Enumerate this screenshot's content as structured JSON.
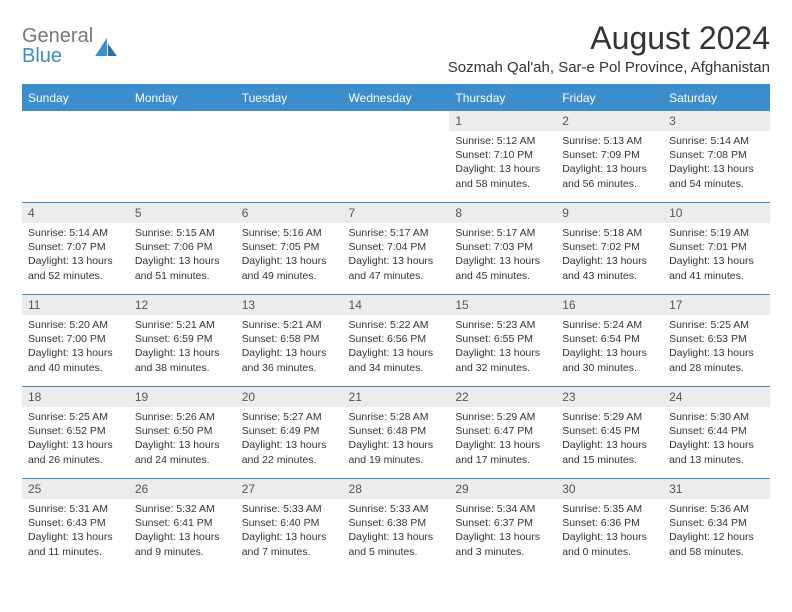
{
  "brand": {
    "line1": "General",
    "line2": "Blue"
  },
  "title": "August 2024",
  "subtitle": "Sozmah Qal'ah, Sar-e Pol Province, Afghanistan",
  "colors": {
    "accent": "#3c8dcc",
    "daynum_bg": "#ececec",
    "text": "#333333"
  },
  "weekdays": [
    "Sunday",
    "Monday",
    "Tuesday",
    "Wednesday",
    "Thursday",
    "Friday",
    "Saturday"
  ],
  "weeks": [
    [
      null,
      null,
      null,
      null,
      {
        "n": "1",
        "sr": "5:12 AM",
        "ss": "7:10 PM",
        "dl": "13 hours and 58 minutes."
      },
      {
        "n": "2",
        "sr": "5:13 AM",
        "ss": "7:09 PM",
        "dl": "13 hours and 56 minutes."
      },
      {
        "n": "3",
        "sr": "5:14 AM",
        "ss": "7:08 PM",
        "dl": "13 hours and 54 minutes."
      }
    ],
    [
      {
        "n": "4",
        "sr": "5:14 AM",
        "ss": "7:07 PM",
        "dl": "13 hours and 52 minutes."
      },
      {
        "n": "5",
        "sr": "5:15 AM",
        "ss": "7:06 PM",
        "dl": "13 hours and 51 minutes."
      },
      {
        "n": "6",
        "sr": "5:16 AM",
        "ss": "7:05 PM",
        "dl": "13 hours and 49 minutes."
      },
      {
        "n": "7",
        "sr": "5:17 AM",
        "ss": "7:04 PM",
        "dl": "13 hours and 47 minutes."
      },
      {
        "n": "8",
        "sr": "5:17 AM",
        "ss": "7:03 PM",
        "dl": "13 hours and 45 minutes."
      },
      {
        "n": "9",
        "sr": "5:18 AM",
        "ss": "7:02 PM",
        "dl": "13 hours and 43 minutes."
      },
      {
        "n": "10",
        "sr": "5:19 AM",
        "ss": "7:01 PM",
        "dl": "13 hours and 41 minutes."
      }
    ],
    [
      {
        "n": "11",
        "sr": "5:20 AM",
        "ss": "7:00 PM",
        "dl": "13 hours and 40 minutes."
      },
      {
        "n": "12",
        "sr": "5:21 AM",
        "ss": "6:59 PM",
        "dl": "13 hours and 38 minutes."
      },
      {
        "n": "13",
        "sr": "5:21 AM",
        "ss": "6:58 PM",
        "dl": "13 hours and 36 minutes."
      },
      {
        "n": "14",
        "sr": "5:22 AM",
        "ss": "6:56 PM",
        "dl": "13 hours and 34 minutes."
      },
      {
        "n": "15",
        "sr": "5:23 AM",
        "ss": "6:55 PM",
        "dl": "13 hours and 32 minutes."
      },
      {
        "n": "16",
        "sr": "5:24 AM",
        "ss": "6:54 PM",
        "dl": "13 hours and 30 minutes."
      },
      {
        "n": "17",
        "sr": "5:25 AM",
        "ss": "6:53 PM",
        "dl": "13 hours and 28 minutes."
      }
    ],
    [
      {
        "n": "18",
        "sr": "5:25 AM",
        "ss": "6:52 PM",
        "dl": "13 hours and 26 minutes."
      },
      {
        "n": "19",
        "sr": "5:26 AM",
        "ss": "6:50 PM",
        "dl": "13 hours and 24 minutes."
      },
      {
        "n": "20",
        "sr": "5:27 AM",
        "ss": "6:49 PM",
        "dl": "13 hours and 22 minutes."
      },
      {
        "n": "21",
        "sr": "5:28 AM",
        "ss": "6:48 PM",
        "dl": "13 hours and 19 minutes."
      },
      {
        "n": "22",
        "sr": "5:29 AM",
        "ss": "6:47 PM",
        "dl": "13 hours and 17 minutes."
      },
      {
        "n": "23",
        "sr": "5:29 AM",
        "ss": "6:45 PM",
        "dl": "13 hours and 15 minutes."
      },
      {
        "n": "24",
        "sr": "5:30 AM",
        "ss": "6:44 PM",
        "dl": "13 hours and 13 minutes."
      }
    ],
    [
      {
        "n": "25",
        "sr": "5:31 AM",
        "ss": "6:43 PM",
        "dl": "13 hours and 11 minutes."
      },
      {
        "n": "26",
        "sr": "5:32 AM",
        "ss": "6:41 PM",
        "dl": "13 hours and 9 minutes."
      },
      {
        "n": "27",
        "sr": "5:33 AM",
        "ss": "6:40 PM",
        "dl": "13 hours and 7 minutes."
      },
      {
        "n": "28",
        "sr": "5:33 AM",
        "ss": "6:38 PM",
        "dl": "13 hours and 5 minutes."
      },
      {
        "n": "29",
        "sr": "5:34 AM",
        "ss": "6:37 PM",
        "dl": "13 hours and 3 minutes."
      },
      {
        "n": "30",
        "sr": "5:35 AM",
        "ss": "6:36 PM",
        "dl": "13 hours and 0 minutes."
      },
      {
        "n": "31",
        "sr": "5:36 AM",
        "ss": "6:34 PM",
        "dl": "12 hours and 58 minutes."
      }
    ]
  ],
  "labels": {
    "sunrise": "Sunrise: ",
    "sunset": "Sunset: ",
    "daylight": "Daylight: "
  }
}
